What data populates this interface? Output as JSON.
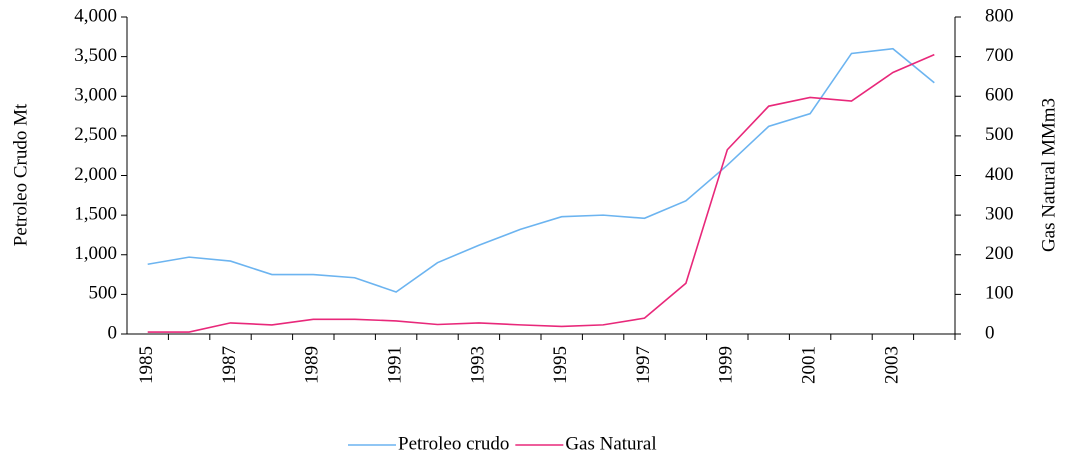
{
  "chart_data": {
    "type": "line",
    "y_label": "Petroleo Crudo Mt",
    "y2_label": "Gas Natural MMm3",
    "categories": [
      "1985",
      null,
      "1987",
      null,
      "1989",
      null,
      "1991",
      null,
      "1993",
      null,
      "1995",
      null,
      "1997",
      null,
      "1999",
      null,
      "2001",
      null,
      "2003",
      null
    ],
    "series": [
      {
        "name": "Petroleo crudo",
        "color": "#6cb4f0",
        "values": [
          880,
          970,
          920,
          750,
          750,
          710,
          530,
          900,
          1120,
          1320,
          1480,
          1500,
          1460,
          1680,
          2130,
          2620,
          2780,
          3540,
          3600,
          3170
        ]
      },
      {
        "name": "Gas Natural",
        "color": "#e8287a",
        "axis": "y2",
        "values": [
          5,
          5,
          28,
          23,
          37,
          37,
          33,
          24,
          28,
          23,
          19,
          23,
          40,
          128,
          465,
          575,
          597,
          588,
          660,
          705
        ]
      }
    ],
    "ylim": [
      0,
      4000
    ],
    "yticks": [
      0,
      500,
      {
        "value": 1000,
        "label": "1,000"
      },
      {
        "value": 1500,
        "label": "1,500"
      },
      {
        "value": 2000,
        "label": "2,000"
      },
      {
        "value": 2500,
        "label": "2,500"
      },
      {
        "value": 3000,
        "label": "3,000"
      },
      {
        "value": 3500,
        "label": "3,500"
      },
      {
        "value": 4000,
        "label": "4,000"
      }
    ],
    "y2lim": [
      0,
      800
    ],
    "y2ticks": [
      0,
      100,
      200,
      300,
      400,
      500,
      600,
      700,
      800
    ],
    "legend": "bottom"
  }
}
